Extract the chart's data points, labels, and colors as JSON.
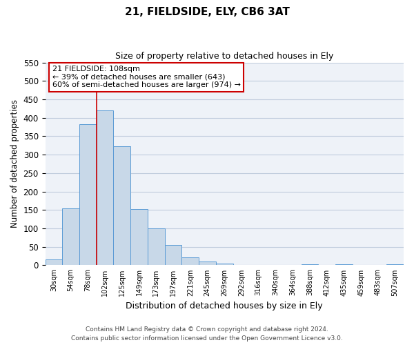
{
  "title": "21, FIELDSIDE, ELY, CB6 3AT",
  "subtitle": "Size of property relative to detached houses in Ely",
  "xlabel": "Distribution of detached houses by size in Ely",
  "ylabel": "Number of detached properties",
  "footnote1": "Contains HM Land Registry data © Crown copyright and database right 2024.",
  "footnote2": "Contains public sector information licensed under the Open Government Licence v3.0.",
  "bar_labels": [
    "30sqm",
    "54sqm",
    "78sqm",
    "102sqm",
    "125sqm",
    "149sqm",
    "173sqm",
    "197sqm",
    "221sqm",
    "245sqm",
    "269sqm",
    "292sqm",
    "316sqm",
    "340sqm",
    "364sqm",
    "388sqm",
    "412sqm",
    "435sqm",
    "459sqm",
    "483sqm",
    "507sqm"
  ],
  "bar_values": [
    15,
    155,
    383,
    420,
    323,
    153,
    100,
    55,
    22,
    11,
    4,
    1,
    0,
    0,
    0,
    2,
    0,
    2,
    0,
    0,
    2
  ],
  "bar_color": "#c8d8e8",
  "bar_edge_color": "#5b9bd5",
  "ylim": [
    0,
    550
  ],
  "yticks": [
    0,
    50,
    100,
    150,
    200,
    250,
    300,
    350,
    400,
    450,
    500,
    550
  ],
  "vline_x": 3.0,
  "vline_color": "#cc0000",
  "annotation_title": "21 FIELDSIDE: 108sqm",
  "annotation_line1": "← 39% of detached houses are smaller (643)",
  "annotation_line2": "60% of semi-detached houses are larger (974) →",
  "annotation_box_color": "#cc0000",
  "grid_color": "#c0ccdd",
  "bg_color": "#eef2f8"
}
